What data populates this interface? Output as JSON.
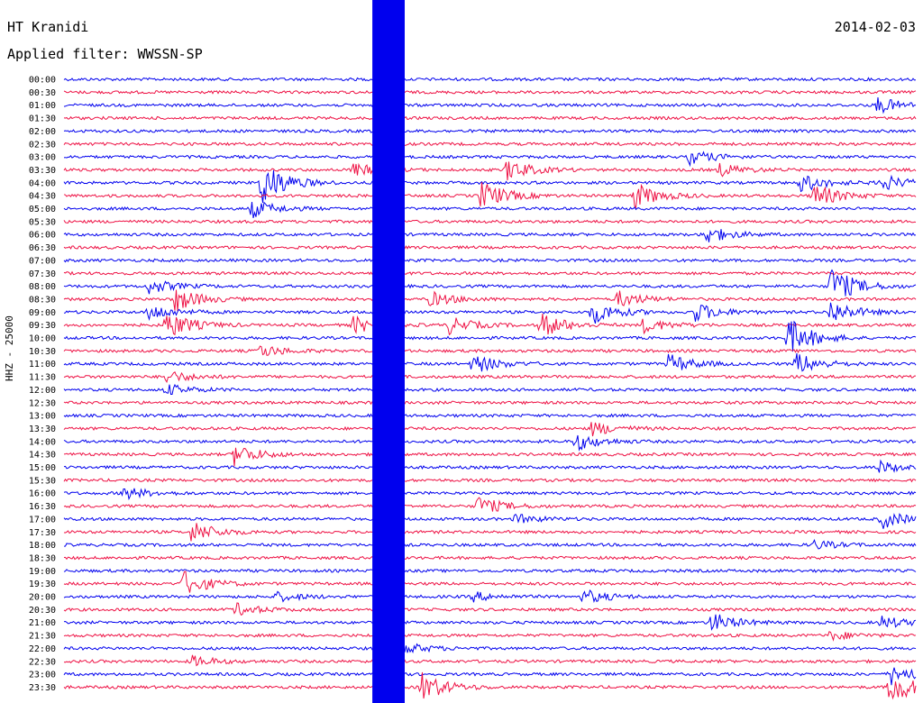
{
  "header": {
    "station": "HT Kranidi",
    "date": "2014-02-03",
    "filter_label": "Applied filter: WWSSN-SP"
  },
  "chart_data": {
    "type": "line",
    "title": "HT Kranidi",
    "subtitle": "Applied filter: WWSSN-SP",
    "date": "2014-02-03",
    "ylabel": "HHZ - 25000",
    "xlabel": "",
    "row_interval_minutes": 30,
    "trace_colors": [
      "#0000ee",
      "#ee1144"
    ],
    "grid": false,
    "legend": "none",
    "rows": [
      {
        "label": "00:00",
        "events": []
      },
      {
        "label": "00:30",
        "events": []
      },
      {
        "label": "01:00",
        "events": [
          {
            "t": 0.955,
            "amp": 9
          }
        ]
      },
      {
        "label": "01:30",
        "events": []
      },
      {
        "label": "02:00",
        "events": []
      },
      {
        "label": "02:30",
        "events": []
      },
      {
        "label": "03:00",
        "events": [
          {
            "t": 0.735,
            "amp": 8
          }
        ]
      },
      {
        "label": "03:30",
        "events": [
          {
            "t": 0.34,
            "amp": 7
          },
          {
            "t": 0.52,
            "amp": 12
          },
          {
            "t": 0.77,
            "amp": 7
          }
        ]
      },
      {
        "label": "04:00",
        "events": [
          {
            "t": 0.23,
            "amp": 28
          },
          {
            "t": 0.865,
            "amp": 10
          },
          {
            "t": 0.96,
            "amp": 9
          }
        ]
      },
      {
        "label": "04:30",
        "events": [
          {
            "t": 0.49,
            "amp": 16
          },
          {
            "t": 0.67,
            "amp": 14
          },
          {
            "t": 0.88,
            "amp": 14
          }
        ]
      },
      {
        "label": "05:00",
        "events": [
          {
            "t": 0.22,
            "amp": 10
          }
        ]
      },
      {
        "label": "05:30",
        "events": []
      },
      {
        "label": "06:00",
        "events": [
          {
            "t": 0.75,
            "amp": 11
          }
        ]
      },
      {
        "label": "06:30",
        "events": []
      },
      {
        "label": "07:00",
        "events": []
      },
      {
        "label": "07:30",
        "events": []
      },
      {
        "label": "08:00",
        "events": [
          {
            "t": 0.1,
            "amp": 8
          },
          {
            "t": 0.9,
            "amp": 22
          }
        ]
      },
      {
        "label": "08:30",
        "events": [
          {
            "t": 0.13,
            "amp": 14
          },
          {
            "t": 0.43,
            "amp": 8
          },
          {
            "t": 0.65,
            "amp": 9
          }
        ]
      },
      {
        "label": "09:00",
        "events": [
          {
            "t": 0.1,
            "amp": 9
          },
          {
            "t": 0.62,
            "amp": 13
          },
          {
            "t": 0.74,
            "amp": 11
          },
          {
            "t": 0.9,
            "amp": 13
          }
        ]
      },
      {
        "label": "09:30",
        "events": [
          {
            "t": 0.12,
            "amp": 16
          },
          {
            "t": 0.34,
            "amp": 9
          },
          {
            "t": 0.45,
            "amp": 10
          },
          {
            "t": 0.56,
            "amp": 14
          },
          {
            "t": 0.68,
            "amp": 8
          }
        ]
      },
      {
        "label": "10:00",
        "events": [
          {
            "t": 0.85,
            "amp": 22
          }
        ]
      },
      {
        "label": "10:30",
        "events": [
          {
            "t": 0.23,
            "amp": 7
          }
        ]
      },
      {
        "label": "11:00",
        "events": [
          {
            "t": 0.48,
            "amp": 11
          },
          {
            "t": 0.71,
            "amp": 11
          },
          {
            "t": 0.86,
            "amp": 12
          }
        ]
      },
      {
        "label": "11:30",
        "events": [
          {
            "t": 0.12,
            "amp": 7
          }
        ]
      },
      {
        "label": "12:00",
        "events": [
          {
            "t": 0.12,
            "amp": 6
          }
        ]
      },
      {
        "label": "12:30",
        "events": []
      },
      {
        "label": "13:00",
        "events": []
      },
      {
        "label": "13:30",
        "events": [
          {
            "t": 0.62,
            "amp": 8
          }
        ]
      },
      {
        "label": "14:00",
        "events": [
          {
            "t": 0.6,
            "amp": 10
          }
        ]
      },
      {
        "label": "14:30",
        "events": [
          {
            "t": 0.2,
            "amp": 12
          }
        ]
      },
      {
        "label": "15:00",
        "events": [
          {
            "t": 0.955,
            "amp": 7
          }
        ]
      },
      {
        "label": "15:30",
        "events": []
      },
      {
        "label": "16:00",
        "events": [
          {
            "t": 0.07,
            "amp": 7
          }
        ]
      },
      {
        "label": "16:30",
        "events": [
          {
            "t": 0.485,
            "amp": 11
          }
        ]
      },
      {
        "label": "17:00",
        "events": [
          {
            "t": 0.53,
            "amp": 5
          },
          {
            "t": 0.96,
            "amp": 10
          }
        ]
      },
      {
        "label": "17:30",
        "events": [
          {
            "t": 0.15,
            "amp": 12
          }
        ]
      },
      {
        "label": "18:00",
        "events": [
          {
            "t": 0.88,
            "amp": 5
          }
        ]
      },
      {
        "label": "18:30",
        "events": []
      },
      {
        "label": "19:00",
        "events": []
      },
      {
        "label": "19:30",
        "events": [
          {
            "t": 0.14,
            "amp": 14
          }
        ]
      },
      {
        "label": "20:00",
        "events": [
          {
            "t": 0.25,
            "amp": 5
          },
          {
            "t": 0.48,
            "amp": 5
          },
          {
            "t": 0.61,
            "amp": 8
          }
        ]
      },
      {
        "label": "20:30",
        "events": [
          {
            "t": 0.2,
            "amp": 7
          }
        ]
      },
      {
        "label": "21:00",
        "events": [
          {
            "t": 0.76,
            "amp": 11
          },
          {
            "t": 0.96,
            "amp": 7
          }
        ]
      },
      {
        "label": "21:30",
        "events": [
          {
            "t": 0.9,
            "amp": 5
          }
        ]
      },
      {
        "label": "22:00",
        "events": [
          {
            "t": 0.4,
            "amp": 6
          }
        ]
      },
      {
        "label": "22:30",
        "events": [
          {
            "t": 0.15,
            "amp": 6
          }
        ]
      },
      {
        "label": "23:00",
        "events": [
          {
            "t": 0.97,
            "amp": 12
          }
        ]
      },
      {
        "label": "23:30",
        "events": [
          {
            "t": 0.42,
            "amp": 16
          },
          {
            "t": 0.97,
            "amp": 20
          }
        ]
      }
    ],
    "saturated_span": {
      "start_row": 0,
      "end_row": 47,
      "t_start": 0.362,
      "t_end": 0.4
    }
  }
}
